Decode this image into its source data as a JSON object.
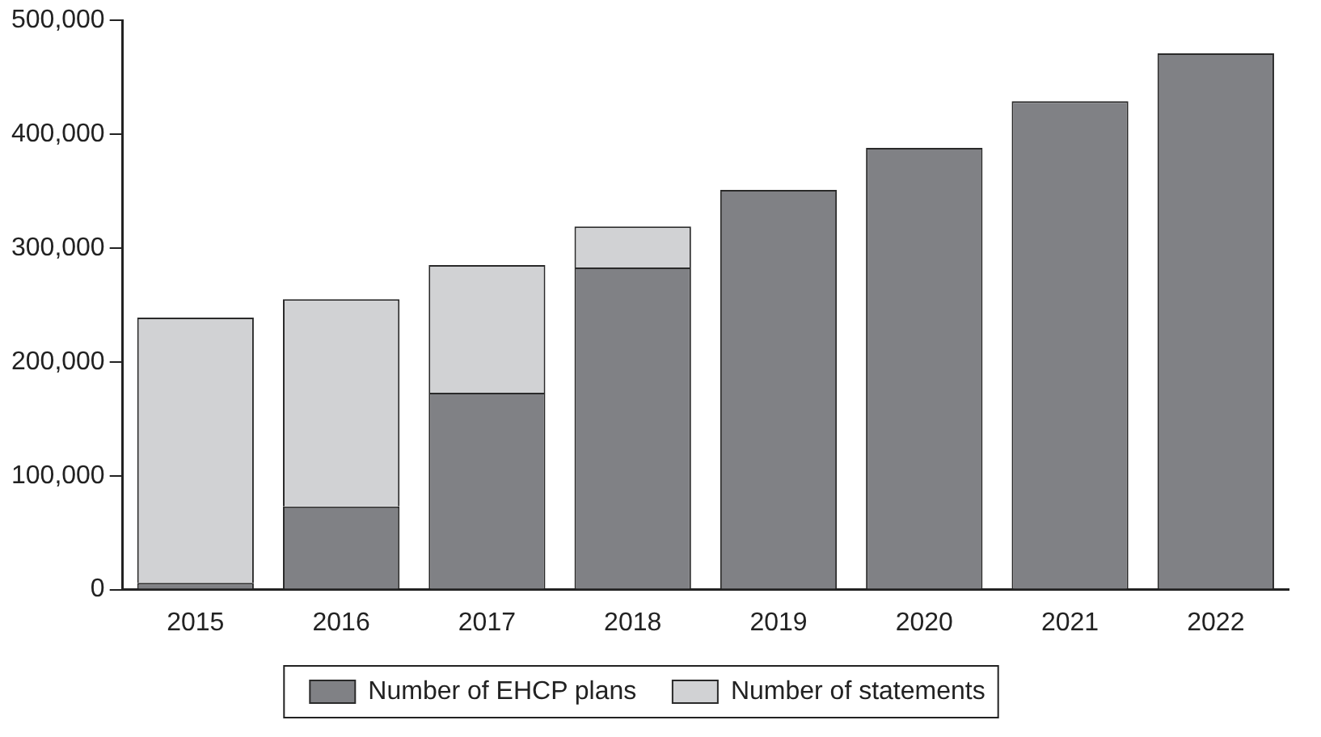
{
  "chart_data": {
    "type": "bar",
    "stacked": true,
    "categories": [
      "2015",
      "2016",
      "2017",
      "2018",
      "2019",
      "2020",
      "2021",
      "2022"
    ],
    "series": [
      {
        "name": "Number of EHCP plans",
        "color": "#808185",
        "values": [
          6000,
          73000,
          173000,
          283000,
          351000,
          388000,
          429000,
          471000
        ]
      },
      {
        "name": "Number of statements",
        "color": "#d1d2d4",
        "values": [
          233000,
          182000,
          112000,
          36000,
          null,
          null,
          null,
          null
        ]
      }
    ],
    "ylim": [
      0,
      500000
    ],
    "yticks": [
      {
        "value": 0,
        "label": "0"
      },
      {
        "value": 100000,
        "label": "100,000"
      },
      {
        "value": 200000,
        "label": "200,000"
      },
      {
        "value": 300000,
        "label": "300,000"
      },
      {
        "value": 400000,
        "label": "400,000"
      },
      {
        "value": 500000,
        "label": "500,000"
      }
    ],
    "grid": false,
    "legend": "bottom"
  }
}
